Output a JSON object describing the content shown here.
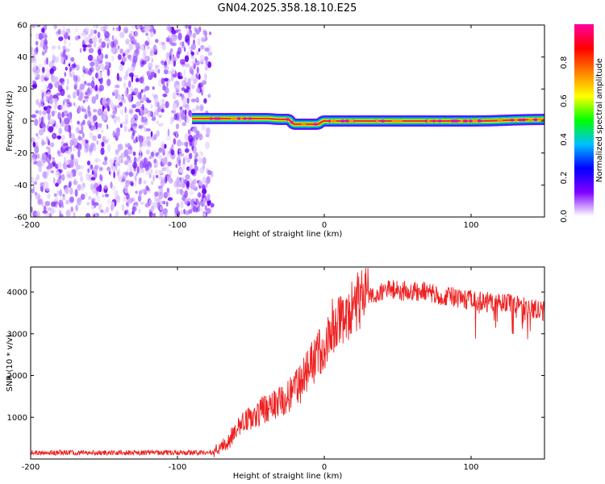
{
  "title": "GN04.2025.358.18.10.E25",
  "chart_data": [
    {
      "type": "heatmap",
      "name": "spectrogram",
      "xlabel": "Height of straight line (km)",
      "ylabel": "Frequency (Hz)",
      "xlim": [
        -200,
        150
      ],
      "ylim": [
        -60,
        60
      ],
      "x_ticks": [
        -200,
        -100,
        0,
        100
      ],
      "y_ticks": [
        -60,
        -40,
        -20,
        0,
        20,
        40,
        60
      ],
      "colorbar": {
        "label": "Normalized spectral amplitude",
        "range": [
          0,
          1
        ],
        "ticks": [
          0.0,
          0.2,
          0.4,
          0.6,
          0.8
        ],
        "tick_labels": [
          "0.0",
          "0.2",
          "0.4",
          "0.6",
          "0.8"
        ],
        "colors": [
          "#ffffff",
          "#8000ff",
          "#0000ff",
          "#00c0ff",
          "#00ff00",
          "#ffff00",
          "#ff8000",
          "#ff0000",
          "#ff00a0"
        ]
      },
      "noise_region_x": [
        -200,
        -78
      ],
      "signal_line": [
        {
          "x": -90,
          "y": 1.5
        },
        {
          "x": -80,
          "y": 1.5
        },
        {
          "x": -40,
          "y": 1.5
        },
        {
          "x": -30,
          "y": 1.0
        },
        {
          "x": -25,
          "y": 1.0
        },
        {
          "x": -20,
          "y": -2.0
        },
        {
          "x": -5,
          "y": -2.0
        },
        {
          "x": 0,
          "y": 0.0
        },
        {
          "x": 100,
          "y": 0.0
        },
        {
          "x": 150,
          "y": 1.0
        }
      ]
    },
    {
      "type": "line",
      "name": "snr",
      "xlabel": "Height of straight line (km)",
      "ylabel": "SNR (10 * v/v)",
      "xlim": [
        -200,
        150
      ],
      "ylim": [
        0,
        4600
      ],
      "x_ticks": [
        -200,
        -100,
        0,
        100
      ],
      "y_ticks": [
        1000,
        2000,
        3000,
        4000
      ],
      "series_color": "#ee2222",
      "baseline_points": [
        {
          "x": -200,
          "y": 150
        },
        {
          "x": -75,
          "y": 150
        },
        {
          "x": -65,
          "y": 450
        },
        {
          "x": -55,
          "y": 900
        },
        {
          "x": -40,
          "y": 1200
        },
        {
          "x": -20,
          "y": 1600
        },
        {
          "x": -10,
          "y": 2200
        },
        {
          "x": 0,
          "y": 2700
        },
        {
          "x": 10,
          "y": 3250
        },
        {
          "x": 20,
          "y": 3700
        },
        {
          "x": 30,
          "y": 3950
        },
        {
          "x": 45,
          "y": 4050
        },
        {
          "x": 70,
          "y": 4000
        },
        {
          "x": 100,
          "y": 3800
        },
        {
          "x": 130,
          "y": 3700
        },
        {
          "x": 150,
          "y": 3550
        }
      ]
    }
  ]
}
